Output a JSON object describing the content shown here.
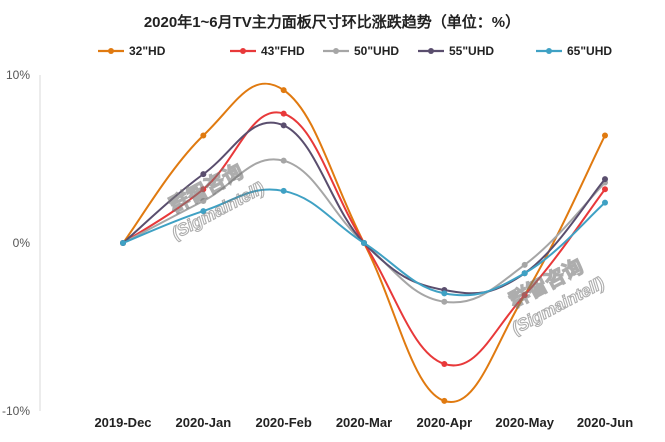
{
  "chart_data": {
    "type": "line",
    "title": "2020年1~6月TV主力面板尺寸环比涨跌趋势（单位：%）",
    "categories": [
      "2019-Dec",
      "2020-Jan",
      "2020-Feb",
      "2020-Mar",
      "2020-Apr",
      "2020-May",
      "2020-Jun"
    ],
    "ylim": [
      -10,
      10
    ],
    "yticks": [
      "10%",
      "0%",
      "-10%"
    ],
    "ytick_values": [
      10,
      0,
      -10
    ],
    "legend_position": "top",
    "series": [
      {
        "name": "32\"HD",
        "color": "#E07A10",
        "values": [
          0,
          6.4,
          9.1,
          0,
          -9.4,
          -3.1,
          6.4
        ]
      },
      {
        "name": "43\"FHD",
        "color": "#E8393A",
        "values": [
          0,
          3.2,
          7.7,
          0,
          -7.2,
          -3.1,
          3.2
        ]
      },
      {
        "name": "50\"UHD",
        "color": "#A6A6A6",
        "values": [
          0,
          2.5,
          4.9,
          0,
          -3.5,
          -1.3,
          3.6
        ]
      },
      {
        "name": "55\"UHD",
        "color": "#5A4E6E",
        "values": [
          0,
          4.1,
          7.0,
          0,
          -2.8,
          -1.8,
          3.8
        ]
      },
      {
        "name": "65\"UHD",
        "color": "#3FA1C4",
        "values": [
          0,
          1.9,
          3.1,
          0,
          -3.0,
          -1.8,
          2.4
        ]
      }
    ]
  },
  "watermarks": [
    {
      "cn": "群智咨询",
      "en": "(Sigmaintell)"
    },
    {
      "cn": "群智咨询",
      "en": "(Sigmaintell)"
    }
  ]
}
